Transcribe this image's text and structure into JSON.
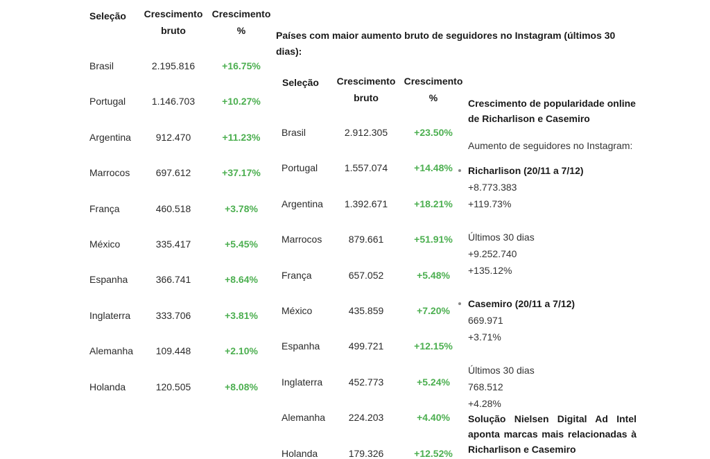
{
  "table1": {
    "headers": {
      "selection": "Seleção",
      "gross": [
        "Crescimento",
        "bruto"
      ],
      "pct": [
        "Crescimento",
        "%"
      ]
    },
    "rows": [
      {
        "name": "Brasil",
        "gross": "2.195.816",
        "pct": "+16.75%"
      },
      {
        "name": "Portugal",
        "gross": "1.146.703",
        "pct": "+10.27%"
      },
      {
        "name": "Argentina",
        "gross": "912.470",
        "pct": "+11.23%"
      },
      {
        "name": "Marrocos",
        "gross": "697.612",
        "pct": "+37.17%"
      },
      {
        "name": "França",
        "gross": "460.518",
        "pct": "+3.78%"
      },
      {
        "name": "México",
        "gross": "335.417",
        "pct": "+5.45%"
      },
      {
        "name": "Espanha",
        "gross": "366.741",
        "pct": "+8.64%"
      },
      {
        "name": "Inglaterra",
        "gross": "333.706",
        "pct": "+3.81%"
      },
      {
        "name": "Alemanha",
        "gross": "109.448",
        "pct": "+2.10%"
      },
      {
        "name": "Holanda",
        "gross": "120.505",
        "pct": "+8.08%"
      }
    ]
  },
  "table2": {
    "title": [
      "Países com maior aumento bruto de seguidores no Instagram (últimos 30",
      "dias):"
    ],
    "headers": {
      "selection": "Seleção",
      "gross": [
        "Crescimento",
        "bruto"
      ],
      "pct": [
        "Crescimento",
        "%"
      ]
    },
    "rows": [
      {
        "name": "Brasil",
        "gross": "2.912.305",
        "pct": "+23.50%"
      },
      {
        "name": "Portugal",
        "gross": "1.557.074",
        "pct": "+14.48%"
      },
      {
        "name": "Argentina",
        "gross": "1.392.671",
        "pct": "+18.21%"
      },
      {
        "name": "Marrocos",
        "gross": "879.661",
        "pct": "+51.91%"
      },
      {
        "name": "França",
        "gross": "657.052",
        "pct": "+5.48%"
      },
      {
        "name": "México",
        "gross": "435.859",
        "pct": "+7.20%"
      },
      {
        "name": "Espanha",
        "gross": "499.721",
        "pct": "+12.15%"
      },
      {
        "name": "Inglaterra",
        "gross": "452.773",
        "pct": "+5.24%"
      },
      {
        "name": "Alemanha",
        "gross": "224.203",
        "pct": "+4.40%"
      },
      {
        "name": "Holanda",
        "gross": "179.326",
        "pct": "+12.52%"
      }
    ]
  },
  "sidebar": {
    "heading": [
      "Crescimento de popularidade online",
      "de Richarlison e Casemiro"
    ],
    "subheading": "Aumento de seguidores no Instagram:",
    "richarlison": {
      "label": "Richarlison (20/11 a 7/12)",
      "gross": "+8.773.383",
      "pct": "+119.73%",
      "last30_label": "Últimos 30 dias",
      "last30_gross": "+9.252.740",
      "last30_pct": "+135.12%"
    },
    "casemiro": {
      "label": "Casemiro (20/11 a 7/12)",
      "gross": "669.971",
      "pct": "+3.71%",
      "last30_label": "Últimos 30 dias",
      "last30_gross": "768.512",
      "last30_pct": "+4.28%"
    },
    "nielsen": [
      "Solução Nielsen Digital Ad Intel",
      "aponta marcas mais relacionadas à",
      "Richarlison e Casemiro"
    ]
  },
  "colors": {
    "positive": "#4caf50",
    "text": "#222222"
  }
}
